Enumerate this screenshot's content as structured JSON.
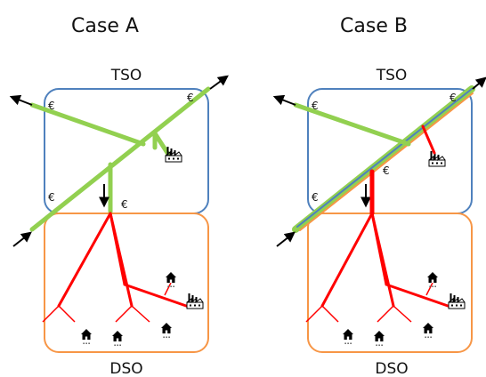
{
  "cases": [
    {
      "title": "Case A",
      "top_box_label": "TSO",
      "bottom_box_label": "DSO"
    },
    {
      "title": "Case B",
      "top_box_label": "TSO",
      "bottom_box_label": "DSO"
    }
  ],
  "price_symbol": "€",
  "colors": {
    "tso_border": "#4f81bd",
    "dso_border": "#f79646",
    "transmission_line": "#92d050",
    "distribution_line": "#ff0000",
    "flow_arrow": "#000000"
  },
  "icons": [
    "house-icon",
    "factory-icon",
    "power-flow-arrow"
  ]
}
